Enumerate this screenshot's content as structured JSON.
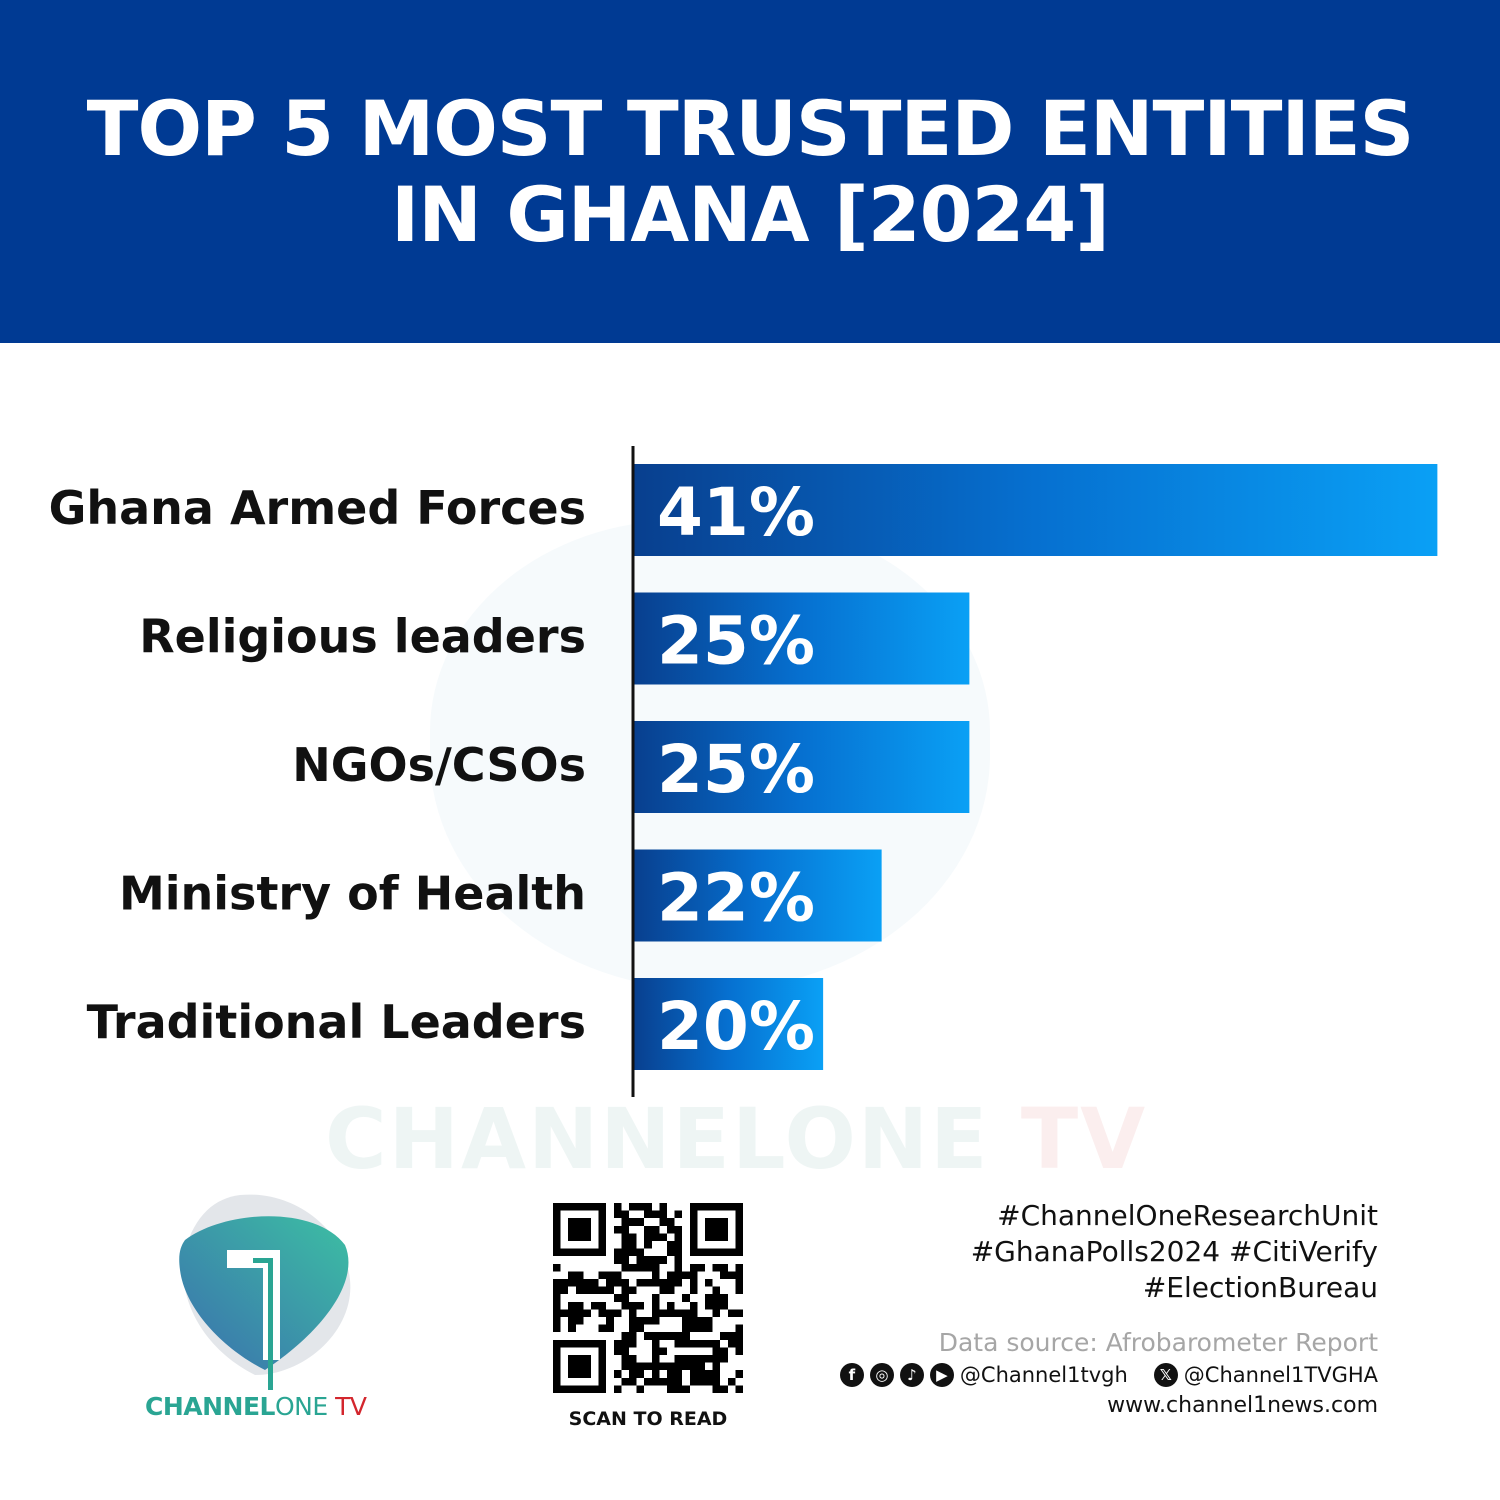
{
  "chart_data": {
    "type": "bar",
    "orientation": "horizontal",
    "title": "TOP 5 MOST TRUSTED ENTITIES IN GHANA [2024]",
    "categories": [
      "Ghana Armed Forces",
      "Religious leaders",
      "NGOs/CSOs",
      "Ministry of Health",
      "Traditional Leaders"
    ],
    "values": [
      41,
      25,
      25,
      22,
      20
    ],
    "data_labels": [
      "41%",
      "25%",
      "25%",
      "22%",
      "20%"
    ],
    "unit": "%",
    "grid": false,
    "legend": "none",
    "colors": {
      "bar_start": "#083f8e",
      "bar_end": "#0aa0f5",
      "header": "#003a93"
    }
  },
  "header": {
    "title_line1": "TOP 5 MOST TRUSTED ENTITIES",
    "title_line2": "IN GHANA [2024]"
  },
  "watermark": {
    "a": "CHANNELONE",
    "b": "TV"
  },
  "logo": {
    "channel": "CHANNEL",
    "one": "ONE",
    "tv": " TV"
  },
  "qr": {
    "caption": "SCAN TO READ"
  },
  "footer": {
    "hashtags": [
      "#ChannelOneResearchUnit",
      "#GhanaPolls2024 #CitiVerify",
      "#ElectionBureau"
    ],
    "source": "Data source: Afrobarometer Report",
    "handle_main": "@Channel1tvgh",
    "handle_x": "@Channel1TVGHA",
    "website": "www.channel1news.com",
    "icons": [
      "facebook-icon",
      "instagram-icon",
      "tiktok-icon",
      "youtube-icon",
      "x-icon"
    ]
  }
}
